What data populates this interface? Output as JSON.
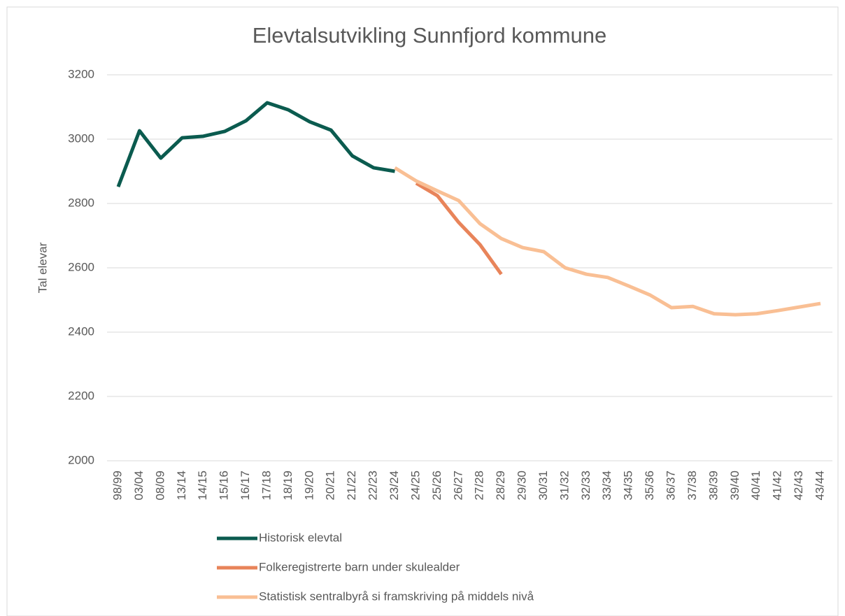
{
  "chart_data": {
    "type": "line",
    "title": "Elevtalsutvikling Sunnfjord kommune",
    "y_label": "Tal elevar",
    "categories": [
      "98/99",
      "03/04",
      "08/09",
      "13/14",
      "14/15",
      "15/16",
      "16/17",
      "17/18",
      "18/19",
      "19/20",
      "20/21",
      "21/22",
      "22/23",
      "23/24",
      "24/25",
      "25/26",
      "26/27",
      "27/28",
      "28/29",
      "29/30",
      "30/31",
      "31/32",
      "32/33",
      "33/34",
      "34/35",
      "35/36",
      "36/37",
      "37/38",
      "38/39",
      "39/40",
      "40/41",
      "41/42",
      "42/43",
      "43/44"
    ],
    "series": [
      {
        "name": "Historisk elevtal",
        "color": "#0b5b4f",
        "values": [
          2852,
          3026,
          2941,
          3004,
          3009,
          3024,
          3057,
          3113,
          3091,
          3054,
          3028,
          2948,
          2911,
          2900,
          null,
          null,
          null,
          null,
          null,
          null,
          null,
          null,
          null,
          null,
          null,
          null,
          null,
          null,
          null,
          null,
          null,
          null,
          null,
          null
        ]
      },
      {
        "name": "Folkeregistrerte barn under skulealder",
        "color": "#e8845a",
        "values": [
          null,
          null,
          null,
          null,
          null,
          null,
          null,
          null,
          null,
          null,
          null,
          null,
          null,
          null,
          2863,
          2824,
          2741,
          2672,
          2580,
          null,
          null,
          null,
          null,
          null,
          null,
          null,
          null,
          null,
          null,
          null,
          null,
          null,
          null,
          null
        ]
      },
      {
        "name": "Statistisk sentralbyrå si framskriving på middels nivå",
        "color": "#f9bf94",
        "values": [
          null,
          null,
          null,
          null,
          null,
          null,
          null,
          null,
          null,
          null,
          null,
          null,
          null,
          2911,
          2870,
          2839,
          2809,
          2737,
          2691,
          2663,
          2650,
          2600,
          2580,
          2570,
          2543,
          2515,
          2476,
          2480,
          2457,
          2454,
          2457,
          2467,
          2478,
          2489
        ]
      }
    ],
    "ylim": [
      2000,
      3200
    ],
    "yticks": [
      2000,
      2200,
      2400,
      2600,
      2800,
      3000,
      3200
    ],
    "grid": true
  }
}
